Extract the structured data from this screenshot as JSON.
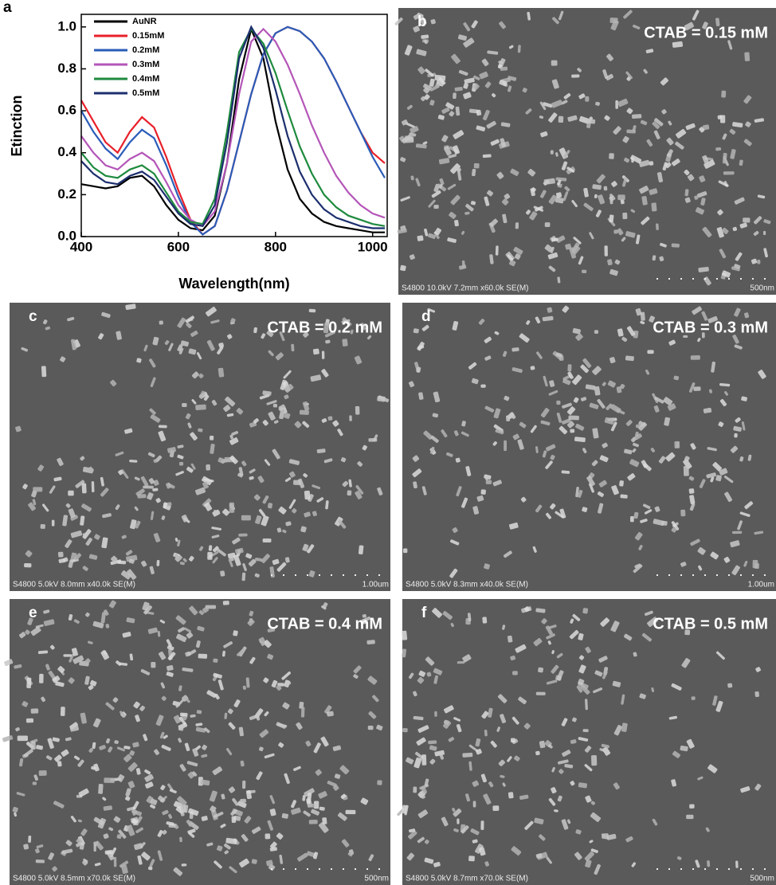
{
  "chart_data": {
    "type": "line",
    "panel_label": "a",
    "xlabel": "Wavelength(nm)",
    "ylabel": "Etinction",
    "x": [
      400,
      425,
      450,
      475,
      500,
      525,
      550,
      575,
      600,
      625,
      650,
      675,
      700,
      725,
      750,
      775,
      800,
      825,
      850,
      875,
      900,
      925,
      950,
      975,
      1000,
      1025
    ],
    "series": [
      {
        "name": "AuNR",
        "color": "#000000",
        "values": [
          0.25,
          0.24,
          0.23,
          0.24,
          0.28,
          0.29,
          0.24,
          0.15,
          0.08,
          0.04,
          0.03,
          0.1,
          0.35,
          0.75,
          0.99,
          0.85,
          0.55,
          0.32,
          0.18,
          0.11,
          0.07,
          0.05,
          0.04,
          0.03,
          0.02,
          0.02
        ]
      },
      {
        "name": "0.15mM",
        "color": "#e8202a",
        "values": [
          0.65,
          0.55,
          0.45,
          0.4,
          0.5,
          0.57,
          0.52,
          0.38,
          0.22,
          0.08,
          0.01,
          0.05,
          0.22,
          0.45,
          0.68,
          0.87,
          0.97,
          1.0,
          0.98,
          0.93,
          0.85,
          0.74,
          0.62,
          0.5,
          0.4,
          0.35
        ]
      },
      {
        "name": "0.2mM",
        "color": "#2a5cb8",
        "values": [
          0.6,
          0.5,
          0.42,
          0.37,
          0.45,
          0.51,
          0.47,
          0.34,
          0.19,
          0.07,
          0.01,
          0.05,
          0.22,
          0.45,
          0.68,
          0.87,
          0.97,
          1.0,
          0.98,
          0.93,
          0.85,
          0.74,
          0.62,
          0.5,
          0.38,
          0.28
        ]
      },
      {
        "name": "0.3mM",
        "color": "#b455b8",
        "values": [
          0.48,
          0.4,
          0.34,
          0.32,
          0.37,
          0.4,
          0.36,
          0.26,
          0.15,
          0.08,
          0.05,
          0.12,
          0.35,
          0.68,
          0.93,
          0.99,
          0.93,
          0.82,
          0.68,
          0.53,
          0.4,
          0.29,
          0.21,
          0.15,
          0.11,
          0.09
        ]
      },
      {
        "name": "0.4mM",
        "color": "#1e8a3e",
        "values": [
          0.4,
          0.33,
          0.29,
          0.28,
          0.32,
          0.34,
          0.3,
          0.21,
          0.12,
          0.07,
          0.06,
          0.18,
          0.5,
          0.88,
          0.99,
          0.92,
          0.78,
          0.6,
          0.43,
          0.3,
          0.2,
          0.14,
          0.1,
          0.08,
          0.06,
          0.05
        ]
      },
      {
        "name": "0.5mM",
        "color": "#1c2f6e",
        "values": [
          0.36,
          0.3,
          0.26,
          0.25,
          0.29,
          0.31,
          0.27,
          0.19,
          0.11,
          0.06,
          0.05,
          0.15,
          0.45,
          0.85,
          1.0,
          0.9,
          0.7,
          0.48,
          0.31,
          0.2,
          0.13,
          0.09,
          0.07,
          0.05,
          0.04,
          0.04
        ]
      }
    ],
    "xlim": [
      400,
      1030
    ],
    "ylim": [
      0,
      1.06
    ],
    "xticks": [
      400,
      600,
      800,
      1000
    ],
    "yticks": [
      {
        "value": 0,
        "label": "0.0"
      },
      0.2,
      0.4,
      0.6,
      0.8,
      {
        "value": 1,
        "label": "1.0"
      }
    ]
  },
  "images": [
    {
      "label": "b",
      "caption": "CTAB = 0.15 mM",
      "info": "S4800 10.0kV 7.2mm x60.0k SE(M)",
      "scale": "500nm"
    },
    {
      "label": "c",
      "caption": "CTAB = 0.2 mM",
      "info": "S4800 5.0kV 8.0mm x40.0k SE(M)",
      "scale": "1.00um"
    },
    {
      "label": "d",
      "caption": "CTAB = 0.3 mM",
      "info": "S4800 5.0kV 8.3mm x40.0k SE(M)",
      "scale": "1.00um"
    },
    {
      "label": "e",
      "caption": "CTAB = 0.4 mM",
      "info": "S4800 5.0kV 8.5mm x70.0k SE(M)",
      "scale": "500nm"
    },
    {
      "label": "f",
      "caption": "CTAB = 0.5 mM",
      "info": "S4800 5.0kV 8.7mm x70.0k SE(M)",
      "scale": "500nm"
    }
  ]
}
